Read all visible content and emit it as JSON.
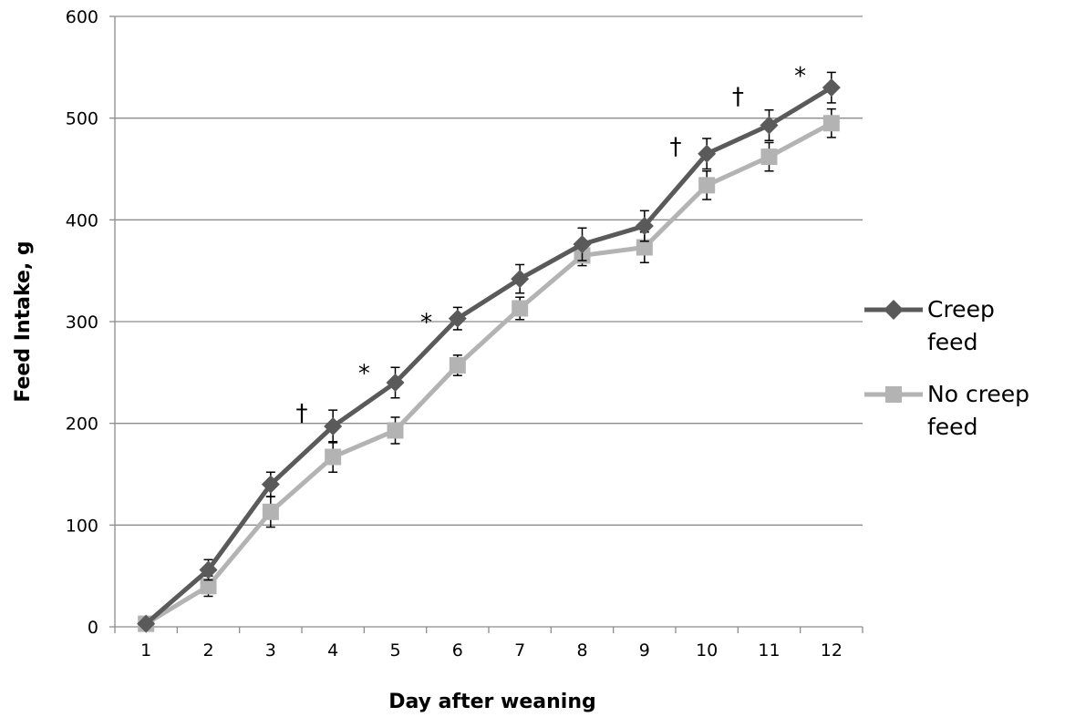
{
  "chart_data": {
    "type": "line",
    "xlabel": "Day after weaning",
    "ylabel": "Feed Intake, g",
    "categories": [
      "1",
      "2",
      "3",
      "4",
      "5",
      "6",
      "7",
      "8",
      "9",
      "10",
      "11",
      "12"
    ],
    "ylim": [
      0,
      600
    ],
    "yticks": [
      0,
      100,
      200,
      300,
      400,
      500,
      600
    ],
    "grid": "horizontal",
    "legend_position": "right",
    "series": [
      {
        "name": "Creep feed",
        "marker": "diamond",
        "color": "#5a5a5a",
        "values": [
          3,
          56,
          140,
          197,
          240,
          303,
          342,
          376,
          394,
          465,
          493,
          530
        ],
        "error": [
          0,
          10,
          12,
          16,
          15,
          11,
          14,
          16,
          15,
          15,
          15,
          15
        ]
      },
      {
        "name": "No creep feed",
        "marker": "square",
        "color": "#b3b3b3",
        "values": [
          3,
          40,
          113,
          167,
          193,
          257,
          313,
          365,
          373,
          434,
          462,
          495
        ],
        "error": [
          0,
          10,
          15,
          15,
          13,
          10,
          11,
          10,
          15,
          14,
          14,
          14
        ]
      }
    ],
    "annotations": [
      {
        "text": "†",
        "x": 3.5
      },
      {
        "text": "*",
        "x": 4.5
      },
      {
        "text": "*",
        "x": 5.5
      },
      {
        "text": "†",
        "x": 9.5
      },
      {
        "text": "†",
        "x": 10.5
      },
      {
        "text": "*",
        "x": 11.5
      }
    ]
  },
  "legend": {
    "creep_line1": "Creep",
    "creep_line2": "feed",
    "nocreep_line1": "No creep",
    "nocreep_line2": "feed"
  }
}
